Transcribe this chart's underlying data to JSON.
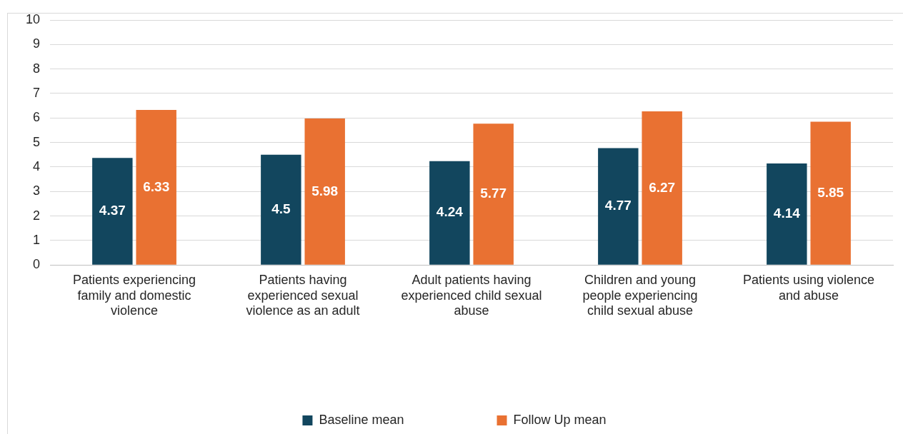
{
  "chart_data": {
    "type": "bar",
    "categories": [
      "Patients experiencing family and domestic violence",
      "Patients having experienced sexual violence as an adult",
      "Adult patients having experienced child sexual abuse",
      "Children and young people experiencing child sexual abuse",
      "Patients using violence and abuse"
    ],
    "series": [
      {
        "name": "Baseline mean",
        "color": "#12465e",
        "values": [
          4.37,
          4.5,
          4.24,
          4.77,
          4.14
        ]
      },
      {
        "name": "Follow Up mean",
        "color": "#e97132",
        "values": [
          6.33,
          5.98,
          5.77,
          6.27,
          5.85
        ]
      }
    ],
    "ylim": [
      0,
      10
    ],
    "yticks": [
      0,
      1,
      2,
      3,
      4,
      5,
      6,
      7,
      8,
      9,
      10
    ],
    "grid": "y",
    "legend": "bottom",
    "data_labels": true
  }
}
